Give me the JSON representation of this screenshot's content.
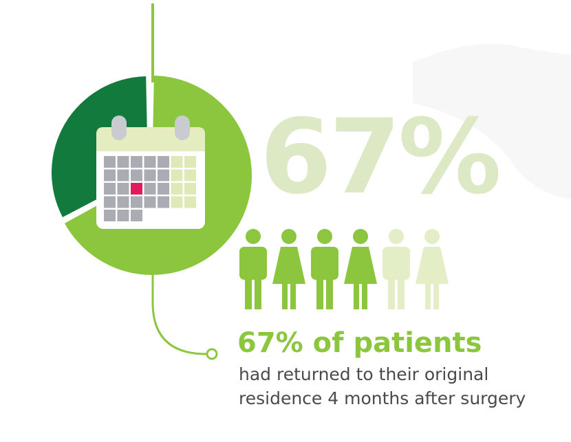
{
  "stat": {
    "value": 67,
    "label": "67%"
  },
  "headline": "67% of patients",
  "description": [
    "had returned to their original",
    "residence 4 months after surgery"
  ]
}
